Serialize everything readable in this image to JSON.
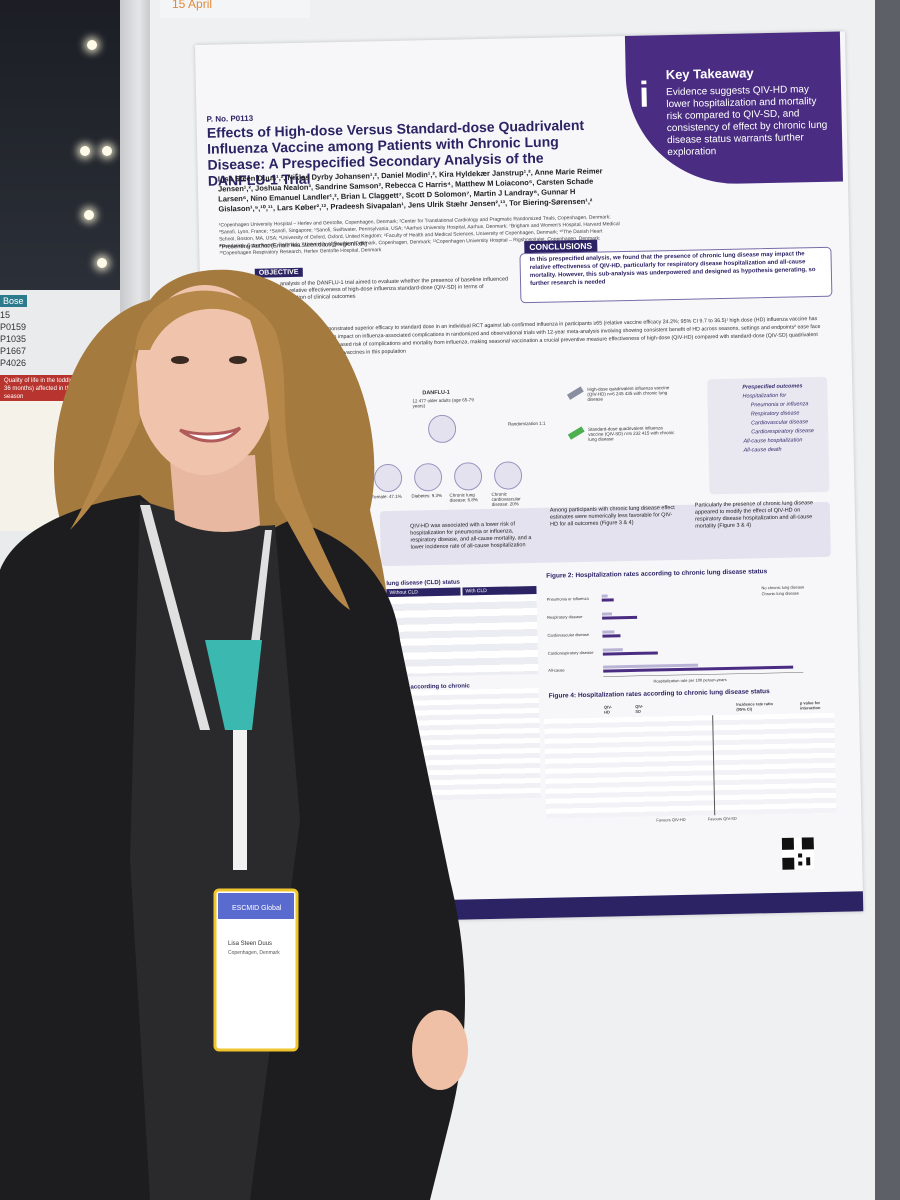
{
  "scene": {
    "date_tab": "15 April",
    "side_board": {
      "tag": "Bose",
      "codes": [
        "15",
        "P0159",
        "P1035",
        "P1667",
        "P4026"
      ],
      "banner": "Quality of life in the toddler population (0-36 months) affected in the 2023-2024 season"
    }
  },
  "poster": {
    "number": "P. No. P0113",
    "title": "Effects of High-dose Versus Standard-dose Quadrivalent Influenza Vaccine among Patients with Chronic Lung Disease: A Prespecified Secondary Analysis of the DANFLU-1 Trial",
    "authors": "Lisa Steen Duus¹,², Niklas Dyrby Johansen¹,², Daniel Modin¹,², Kira Hyldekær Janstrup¹,², Anne Marie Reimer Jensen¹,², Joshua Nealon³, Sandrine Samson³, Rebecca C Harris⁴, Matthew M Loiacono⁵, Carsten Schade Larsen⁶, Nino Emanuel Landler¹,², Brian L Claggett⁷, Scott D Solomon⁷, Martin J Landray⁸, Gunnar H Gislason¹,⁹,¹⁰,¹¹, Lars Køber²,¹², Pradeesh Sivapalan¹, Jens Ulrik Stæhr Jensen²,¹³, Tor Biering-Sørensen¹,²",
    "affiliations": "¹Copenhagen University Hospital – Herlev and Gentofte, Copenhagen, Denmark; ²Center for Translational Cardiology and Pragmatic Randomized Trials, Copenhagen, Denmark; ³Sanofi, Lyon, France; ⁴Sanofi, Singapore; ⁵Sanofi, Swiftwater, Pennsylvania, USA; ⁶Aarhus University Hospital, Aarhus, Denmark; ⁷Brigham and Women's Hospital, Harvard Medical School, Boston, MA, USA; ⁸University of Oxford, Oxford, United Kingdom; ⁹Faculty of Health and Medical Sciences, University of Copenhagen, Denmark; ¹⁰The Danish Heart Foundation, Copenhagen, Denmark; ¹¹University of Southern Denmark, Copenhagen, Denmark; ¹²Copenhagen University Hospital – Rigshospitalet, Copenhagen, Denmark; ¹³Copenhagen Respiratory Research, Herlev Gentofte Hospital, Denmark",
    "presenter": "*Presenting Author (Email: lisa.steen.duus@regionh.dk)",
    "key_takeaway": {
      "title": "Key Takeaway",
      "text": "Evidence suggests QIV-HD may lower hospitalization and mortality risk compared to QIV-SD, and consistency of effect by chronic lung disease status warrants further exploration"
    },
    "conclusions": {
      "title": "CONCLUSIONS",
      "text": "In this prespecified analysis, we found that the presence of chronic lung disease may impact the relative effectiveness of QIV-HD, particularly for respiratory disease hospitalization and all-cause mortality. However, this sub-analysis was underpowered and designed as hypothesis generating, so further research is needed"
    },
    "objective": {
      "title": "OBJECTIVE",
      "text": "analysis of the DANFLU-1 trial aimed to evaluate whether the presence of baseline influenced the relative effectiveness of high-dose influenza standard-dose (QIV-SD) in terms of prevention of clinical outcomes"
    },
    "background": "demonstrated superior efficacy to standard dose in an individual RCT against lab-confirmed influenza in participants ≥65 (relative vaccine efficacy 24.2%; 95% CI 9.7 to 36.5)¹ high dose (HD) influenza vaccine has shown impact on influenza-associated complications in randomized and observational trials with 12-year meta-analysis involving showing consistent benefit of HD across seasons, settings and endpoints² ease face an increased risk of complications and mortality from influenza, making seasonal vaccination a crucial preventive measure effectiveness of high-dose (QIV-HD) compared with standard-dose (QIV-SD) quadrivalent influenza vaccines in this population",
    "design": {
      "trial": "DANFLU-1",
      "participants": "12 477 older adults (age 65-79 years)",
      "randomization": "Randomization 1:1",
      "arm_hd": "High-dose quadrivalent influenza vaccine (QIV-HD) n=6 245 435 with chronic lung disease",
      "arm_sd": "Standard-dose quadrivalent influenza vaccine (QIV-SD) n=6 232 415 with chronic lung disease",
      "baseline": [
        "Median age: 71.7 years",
        "Female: 47.1%",
        "Diabetes: 9.3%",
        "Chronic lung disease: 6.8%",
        "Chronic cardiovascular disease: 20%"
      ]
    },
    "outcomes": {
      "title": "Prespecified outcomes",
      "items": [
        "Hospitalization for",
        "Pneumonia or influenza",
        "Respiratory disease",
        "Cardiovascular disease",
        "Cardiorespiratory disease",
        "All-cause hospitalization",
        "All-cause death"
      ]
    },
    "results": [
      "QIV-HD was associated with a lower risk of hospitalization for pneumonia or influenza, respiratory disease, and all-cause mortality, and a lower incidence rate of all-cause hospitalization",
      "Among participants with chronic lung disease effect estimates were numerically less favorable for QIV-HD for all outcomes (Figure 3 & 4)",
      "Particularly the presence of chronic lung disease appeared to modify the effect of QIV-HD on respiratory disease hospitalization and all-cause mortality (Figure 3 & 4)"
    ],
    "table_title": "lung disease (CLD) status",
    "table_cols": [
      "Without CLD",
      "With CLD"
    ],
    "fig3_title": "QIV-SD according to chronic",
    "fig2": {
      "title": "Figure 2: Hospitalization rates according to chronic lung disease status",
      "legend": [
        "No chronic lung disease",
        "Chronic lung disease"
      ],
      "categories": [
        "Pneumonia or influenza",
        "Respiratory disease",
        "Cardiovascular disease",
        "Cardiorespiratory disease",
        "All-cause"
      ],
      "xlabel": "Hospitalization rate per 100 person-years",
      "ticks": [
        "0",
        "5",
        "10",
        "15",
        "20",
        "25",
        "30",
        "35",
        "40"
      ]
    },
    "fig4": {
      "title": "Figure 4: Hospitalization rates according to chronic lung disease status",
      "cols": [
        "QIV-HD",
        "QIV-SD",
        "Incidence rate ratio (95% CI)",
        "p value for interaction"
      ],
      "axis": [
        "0.06",
        "0.13",
        "0.25",
        "0.50",
        "1.00",
        "2.00",
        "4.00",
        "8.00"
      ],
      "favours": [
        "Favours QIV-HD",
        "Favours QIV-SD"
      ]
    }
  },
  "badge": {
    "org": "ESCMID Global",
    "name": "Lisa Steen Duus",
    "city": "Copenhagen, Denmark"
  }
}
